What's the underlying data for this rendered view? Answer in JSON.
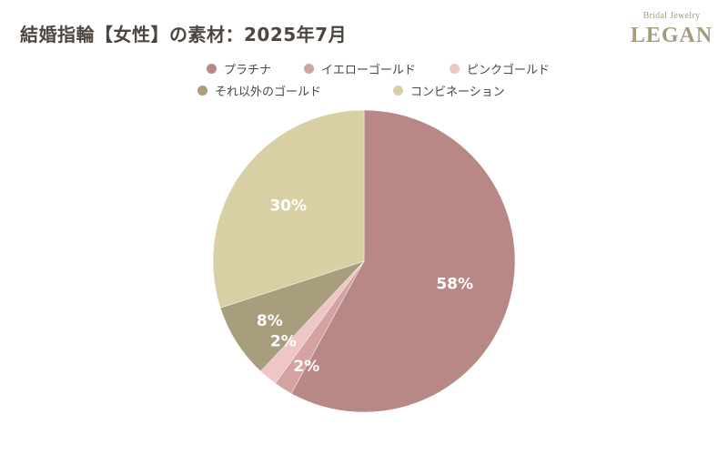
{
  "title": "結婚指輪【女性】の素材：2025年7月",
  "logo": {
    "top_text": "Bridal Jewelry",
    "main_text": "LEGAN"
  },
  "chart_data": {
    "type": "pie",
    "title": "結婚指輪【女性】の素材：2025年7月",
    "start_angle_deg": 0,
    "direction": "clockwise",
    "legend_position": "top",
    "labels": [
      "プラチナ",
      "イエローゴールド",
      "ピンクゴールド",
      "それ以外のゴールド",
      "コンビネーション"
    ],
    "values": [
      58,
      2,
      2,
      8,
      30
    ],
    "value_labels": [
      "58%",
      "2%",
      "2%",
      "8%",
      "30%"
    ],
    "colors": [
      "#b88886",
      "#d4a3a1",
      "#eec6c6",
      "#a89d7c",
      "#d8cfa4"
    ]
  }
}
